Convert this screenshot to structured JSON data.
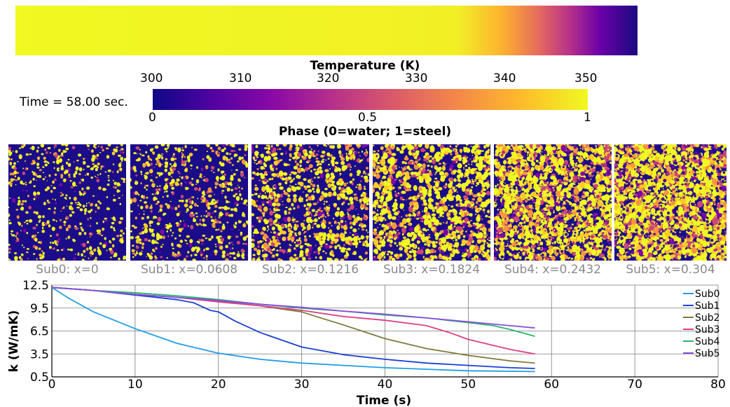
{
  "time_label": "Time = 58.00 sec.",
  "temperature_colorbar": {
    "title": "Temperature (K)",
    "ticks": [
      "300",
      "310",
      "320",
      "330",
      "340",
      "350"
    ],
    "range": [
      300,
      352
    ]
  },
  "phase_colorbar": {
    "title": "Phase (0=water; 1=steel)",
    "ticks": [
      "0",
      "0.5",
      "1"
    ]
  },
  "temperature_field": {
    "colormap": "plasma",
    "description_values_K": {
      "left": 352,
      "mid": 345,
      "right": 300
    }
  },
  "subdomains": [
    {
      "label": "Sub0: x=0",
      "steel_fraction": 0.12
    },
    {
      "label": "Sub1: x=0.0608",
      "steel_fraction": 0.18
    },
    {
      "label": "Sub2: x=0.1216",
      "steel_fraction": 0.32
    },
    {
      "label": "Sub3: x=0.1824",
      "steel_fraction": 0.45
    },
    {
      "label": "Sub4: x=0.2432",
      "steel_fraction": 0.62
    },
    {
      "label": "Sub5: x=0.304",
      "steel_fraction": 0.68
    }
  ],
  "chart_data": {
    "type": "line",
    "xlabel": "Time (s)",
    "ylabel": "k (W/mK)",
    "xlim": [
      0,
      80
    ],
    "ylim": [
      0.5,
      12.5
    ],
    "xticks": [
      "0",
      "10",
      "20",
      "30",
      "40",
      "50",
      "60",
      "70",
      "80"
    ],
    "yticks": [
      "0.5",
      "3.5",
      "6.5",
      "9.5",
      "12.5"
    ],
    "grid": true,
    "legend_position": "right",
    "series": [
      {
        "name": "Sub0",
        "color": "#1f9ee6",
        "x": [
          0,
          2,
          5,
          10,
          15,
          20,
          25,
          30,
          40,
          50,
          58
        ],
        "y": [
          12.2,
          10.8,
          9.0,
          6.8,
          4.9,
          3.6,
          2.8,
          2.3,
          1.7,
          1.3,
          1.2
        ]
      },
      {
        "name": "Sub1",
        "color": "#1a3fd6",
        "x": [
          0,
          5,
          10,
          15,
          17,
          19,
          20,
          22,
          25,
          30,
          35,
          40,
          45,
          50,
          55,
          58
        ],
        "y": [
          12.2,
          11.8,
          11.2,
          10.6,
          10.2,
          9.2,
          9.0,
          7.8,
          6.3,
          4.4,
          3.4,
          2.8,
          2.3,
          2.0,
          1.7,
          1.6
        ]
      },
      {
        "name": "Sub2",
        "color": "#7c7a3b",
        "x": [
          0,
          5,
          10,
          15,
          20,
          25,
          30,
          32,
          35,
          40,
          45,
          50,
          55,
          58
        ],
        "y": [
          12.2,
          11.8,
          11.3,
          10.9,
          10.4,
          9.8,
          9.0,
          8.3,
          7.3,
          5.5,
          4.2,
          3.3,
          2.6,
          2.3
        ]
      },
      {
        "name": "Sub3",
        "color": "#dd3f86",
        "x": [
          0,
          5,
          10,
          15,
          20,
          25,
          30,
          35,
          40,
          45,
          48,
          50,
          55,
          58
        ],
        "y": [
          12.2,
          11.8,
          11.3,
          10.9,
          10.3,
          9.8,
          9.2,
          8.4,
          7.9,
          7.2,
          6.2,
          5.4,
          4.1,
          3.5
        ]
      },
      {
        "name": "Sub4",
        "color": "#27b56b",
        "x": [
          0,
          5,
          10,
          15,
          20,
          25,
          30,
          35,
          40,
          45,
          50,
          53,
          55,
          58
        ],
        "y": [
          12.2,
          11.8,
          11.5,
          11.1,
          10.6,
          10.0,
          9.5,
          9.1,
          8.6,
          8.2,
          7.6,
          7.2,
          6.7,
          5.8
        ]
      },
      {
        "name": "Sub5",
        "color": "#8a4cdf",
        "x": [
          0,
          5,
          10,
          15,
          20,
          25,
          30,
          35,
          40,
          45,
          50,
          55,
          58
        ],
        "y": [
          12.2,
          11.8,
          11.3,
          10.9,
          10.5,
          10.0,
          9.6,
          9.1,
          8.7,
          8.2,
          7.7,
          7.2,
          6.9
        ]
      }
    ]
  }
}
